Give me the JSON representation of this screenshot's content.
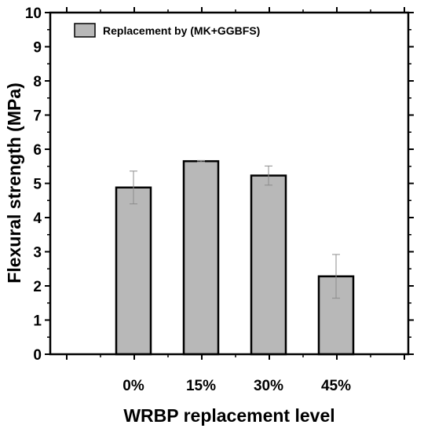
{
  "chart_data": {
    "type": "bar",
    "categories": [
      "0%",
      "15%",
      "30%",
      "45%"
    ],
    "series": [
      {
        "name": "Replacement by (MK+GGBFS)",
        "values": [
          4.88,
          5.65,
          5.23,
          2.28
        ],
        "errors": [
          0.48,
          0.02,
          0.28,
          0.64
        ]
      }
    ],
    "xlabel": "WRBP replacement level",
    "ylabel": "Flexural strength (MPa)",
    "ylim": [
      0,
      10
    ],
    "yticks": [
      "0",
      "1",
      "2",
      "3",
      "4",
      "5",
      "6",
      "7",
      "8",
      "9",
      "10"
    ],
    "grid": false,
    "legend_position": "top-left",
    "colors": {
      "bar_fill": "#b8b8b8",
      "bar_stroke": "#000000",
      "error_bar": "#8c8c8c"
    }
  }
}
